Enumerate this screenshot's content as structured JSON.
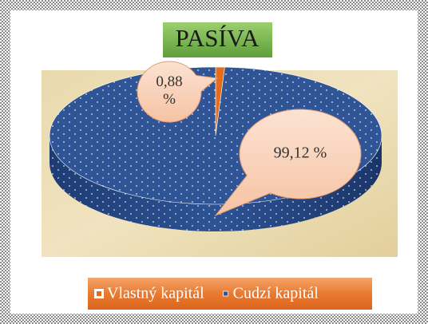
{
  "chart_data": {
    "type": "pie",
    "title": "PASÍVA",
    "categories": [
      "Vlastný kapitál",
      "Cudzí kapitál"
    ],
    "values": [
      0.88,
      99.12
    ],
    "value_labels": [
      "0,88 %",
      "99,12 %"
    ],
    "colors": [
      "#e46c1e",
      "#2f5597"
    ],
    "legend": "bottom"
  }
}
